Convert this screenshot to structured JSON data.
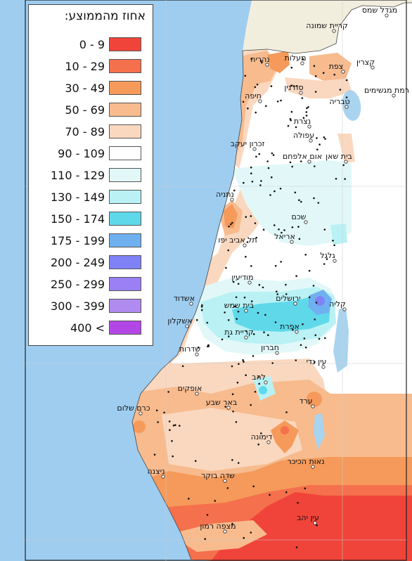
{
  "legend": {
    "title": "אחוז מהממוצע:",
    "classes": [
      {
        "label": "0 - 9",
        "color": "#f0443a"
      },
      {
        "label": "10 - 29",
        "color": "#f5704c"
      },
      {
        "label": "30 - 49",
        "color": "#f59a5a"
      },
      {
        "label": "50 - 69",
        "color": "#f7bb8e"
      },
      {
        "label": "70 - 89",
        "color": "#fad8bf"
      },
      {
        "label": "90 - 109",
        "color": "#ffffff"
      },
      {
        "label": "110 - 129",
        "color": "#e2f8f8"
      },
      {
        "label": "130 - 149",
        "color": "#b9f1f4"
      },
      {
        "label": "150 - 174",
        "color": "#5fd9ea"
      },
      {
        "label": "175 - 199",
        "color": "#6fb1f0"
      },
      {
        "label": "200 - 249",
        "color": "#7f82f5"
      },
      {
        "label": "250 - 299",
        "color": "#9a7ff5"
      },
      {
        "label": "300 - 399",
        "color": "#b08bf0"
      },
      {
        "label": "400 <",
        "color": "#b347e6"
      }
    ]
  },
  "map": {
    "sea_color": "#9ecdf0",
    "land_color": "#f2eede",
    "lake_color": "#a9d4f0",
    "places": [
      {
        "name": "מגדל שמס"
      },
      {
        "name": "קריית שמונה"
      },
      {
        "name": "נהריה"
      },
      {
        "name": "מעלות"
      },
      {
        "name": "צפת"
      },
      {
        "name": "קצרין"
      },
      {
        "name": "רמת מגשימים"
      },
      {
        "name": "סח'נין"
      },
      {
        "name": "טבריה"
      },
      {
        "name": "חיפה"
      },
      {
        "name": "נצרת"
      },
      {
        "name": "עפולה"
      },
      {
        "name": "זכרון יעקב"
      },
      {
        "name": "אום אלפחם"
      },
      {
        "name": "בית שאן"
      },
      {
        "name": "נתניה"
      },
      {
        "name": "שכם"
      },
      {
        "name": "אריאל"
      },
      {
        "name": "תל אביב יפו"
      },
      {
        "name": "גלגל"
      },
      {
        "name": "מודיעין"
      },
      {
        "name": "אשדוד"
      },
      {
        "name": "ירושלים"
      },
      {
        "name": "בית שמש"
      },
      {
        "name": "קליה"
      },
      {
        "name": "אשקלון"
      },
      {
        "name": "אפרת"
      },
      {
        "name": "קריית גת"
      },
      {
        "name": "שדרות"
      },
      {
        "name": "חברון"
      },
      {
        "name": "עין גדי"
      },
      {
        "name": "להב"
      },
      {
        "name": "אופקים"
      },
      {
        "name": "ערד"
      },
      {
        "name": "באר שבע"
      },
      {
        "name": "כרם שלום"
      },
      {
        "name": "דימונה"
      },
      {
        "name": "נאות הכיכר"
      },
      {
        "name": "ניצנה"
      },
      {
        "name": "שדה בוקר"
      },
      {
        "name": "עין יהב"
      },
      {
        "name": "מצפה רמון"
      }
    ]
  }
}
